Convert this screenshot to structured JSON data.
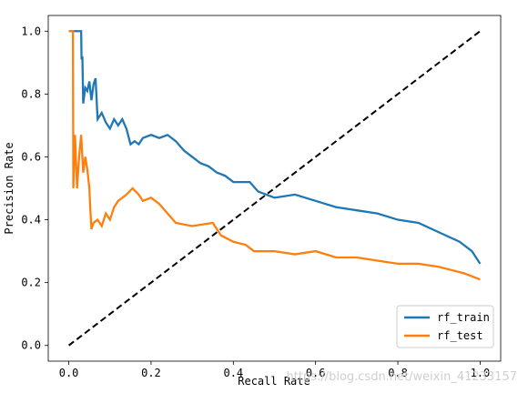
{
  "chart_data": {
    "type": "line",
    "title": "",
    "xlabel": "Recall Rate",
    "ylabel": "Precision Rate",
    "xlim": [
      -0.05,
      1.05
    ],
    "ylim": [
      -0.05,
      1.05
    ],
    "xticks": [
      "0.0",
      "0.2",
      "0.4",
      "0.6",
      "0.8",
      "1.0"
    ],
    "yticks": [
      "0.0",
      "0.2",
      "0.4",
      "0.6",
      "0.8",
      "1.0"
    ],
    "grid": false,
    "legend": "bottom-right",
    "series": [
      {
        "name": "rf_train",
        "color": "#1f77b4",
        "style": "solid",
        "points": [
          [
            0.0,
            1.0
          ],
          [
            0.03,
            1.0
          ],
          [
            0.031,
            0.91
          ],
          [
            0.033,
            0.92
          ],
          [
            0.035,
            0.77
          ],
          [
            0.04,
            0.82
          ],
          [
            0.045,
            0.81
          ],
          [
            0.05,
            0.84
          ],
          [
            0.055,
            0.78
          ],
          [
            0.06,
            0.83
          ],
          [
            0.065,
            0.85
          ],
          [
            0.07,
            0.72
          ],
          [
            0.08,
            0.74
          ],
          [
            0.09,
            0.71
          ],
          [
            0.1,
            0.69
          ],
          [
            0.11,
            0.72
          ],
          [
            0.12,
            0.7
          ],
          [
            0.13,
            0.72
          ],
          [
            0.14,
            0.69
          ],
          [
            0.15,
            0.64
          ],
          [
            0.16,
            0.65
          ],
          [
            0.17,
            0.64
          ],
          [
            0.18,
            0.66
          ],
          [
            0.2,
            0.67
          ],
          [
            0.22,
            0.66
          ],
          [
            0.24,
            0.67
          ],
          [
            0.26,
            0.65
          ],
          [
            0.28,
            0.62
          ],
          [
            0.3,
            0.6
          ],
          [
            0.32,
            0.58
          ],
          [
            0.34,
            0.57
          ],
          [
            0.36,
            0.55
          ],
          [
            0.38,
            0.54
          ],
          [
            0.4,
            0.52
          ],
          [
            0.42,
            0.52
          ],
          [
            0.44,
            0.52
          ],
          [
            0.46,
            0.49
          ],
          [
            0.48,
            0.48
          ],
          [
            0.5,
            0.47
          ],
          [
            0.55,
            0.48
          ],
          [
            0.6,
            0.46
          ],
          [
            0.65,
            0.44
          ],
          [
            0.7,
            0.43
          ],
          [
            0.75,
            0.42
          ],
          [
            0.8,
            0.4
          ],
          [
            0.85,
            0.39
          ],
          [
            0.9,
            0.36
          ],
          [
            0.95,
            0.33
          ],
          [
            0.98,
            0.3
          ],
          [
            1.0,
            0.26
          ]
        ]
      },
      {
        "name": "rf_test",
        "color": "#ff7f0e",
        "style": "solid",
        "points": [
          [
            0.0,
            1.0
          ],
          [
            0.01,
            1.0
          ],
          [
            0.011,
            0.5
          ],
          [
            0.015,
            0.67
          ],
          [
            0.02,
            0.5
          ],
          [
            0.025,
            0.6
          ],
          [
            0.03,
            0.67
          ],
          [
            0.035,
            0.55
          ],
          [
            0.04,
            0.6
          ],
          [
            0.045,
            0.56
          ],
          [
            0.05,
            0.5
          ],
          [
            0.052,
            0.44
          ],
          [
            0.055,
            0.37
          ],
          [
            0.06,
            0.39
          ],
          [
            0.07,
            0.4
          ],
          [
            0.08,
            0.38
          ],
          [
            0.09,
            0.42
          ],
          [
            0.1,
            0.4
          ],
          [
            0.11,
            0.44
          ],
          [
            0.12,
            0.46
          ],
          [
            0.13,
            0.47
          ],
          [
            0.14,
            0.48
          ],
          [
            0.155,
            0.5
          ],
          [
            0.17,
            0.48
          ],
          [
            0.18,
            0.46
          ],
          [
            0.2,
            0.47
          ],
          [
            0.22,
            0.45
          ],
          [
            0.24,
            0.42
          ],
          [
            0.26,
            0.39
          ],
          [
            0.3,
            0.38
          ],
          [
            0.35,
            0.39
          ],
          [
            0.37,
            0.35
          ],
          [
            0.4,
            0.33
          ],
          [
            0.43,
            0.32
          ],
          [
            0.45,
            0.3
          ],
          [
            0.5,
            0.3
          ],
          [
            0.55,
            0.29
          ],
          [
            0.6,
            0.3
          ],
          [
            0.65,
            0.28
          ],
          [
            0.7,
            0.28
          ],
          [
            0.75,
            0.27
          ],
          [
            0.8,
            0.26
          ],
          [
            0.85,
            0.26
          ],
          [
            0.9,
            0.25
          ],
          [
            0.93,
            0.24
          ],
          [
            0.96,
            0.23
          ],
          [
            1.0,
            0.21
          ]
        ]
      },
      {
        "name": "",
        "color": "#000000",
        "style": "dashed",
        "points": [
          [
            0.0,
            0.0
          ],
          [
            1.0,
            1.0
          ]
        ]
      }
    ]
  },
  "watermark": "https://blog.csdn.net/weixin_41233157"
}
